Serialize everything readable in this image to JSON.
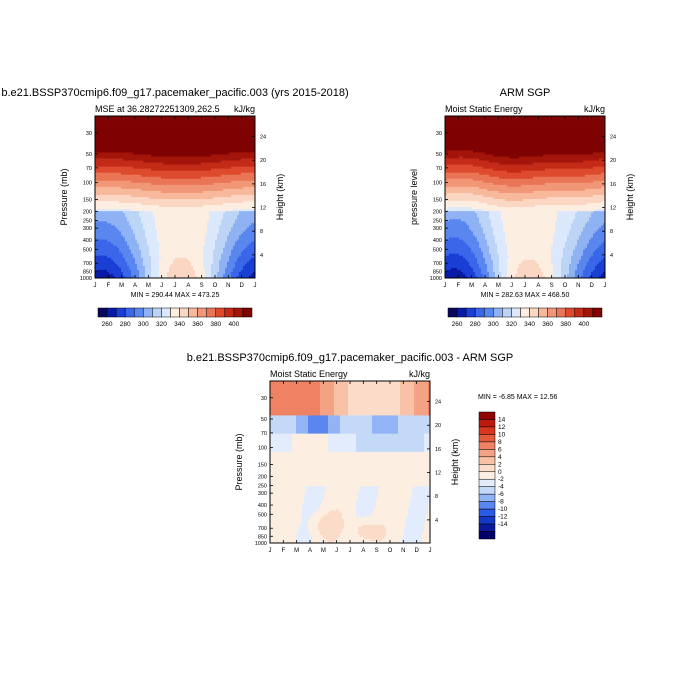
{
  "colors": {
    "abs_levels": [
      "#08085e",
      "#0a1aa8",
      "#1a3fd4",
      "#3a66ea",
      "#5a86f0",
      "#8fb2f4",
      "#bcd4f6",
      "#dce8fb",
      "#fdeee2",
      "#fbd6c2",
      "#f7b89c",
      "#f19777",
      "#ea7556",
      "#dd4a2e",
      "#c42a18",
      "#a3150a",
      "#7f0303"
    ],
    "diff_levels": [
      "#00006b",
      "#0a1a9e",
      "#1438c8",
      "#2a5ae8",
      "#5a86f0",
      "#92b4f5",
      "#c4d8f8",
      "#e2ecfc",
      "#fdeee2",
      "#fbdcc8",
      "#f8c2a6",
      "#f4a284",
      "#ef8262",
      "#e65a3c",
      "#d8361f",
      "#bb1a0d",
      "#8f0505"
    ]
  },
  "main_title": "b.e21.BSSP370cmip6.f09_g17.pacemaker_pacific.003 - ARM SGP",
  "panels": [
    {
      "title": "b.e21.BSSP370cmip6.f09_g17.pacemaker_pacific.003 (yrs 2015-2018)",
      "left_string": "MSE at 36.28272251309,262.5",
      "right_string": "kJ/kg",
      "ylabel": "Pressure (mb)",
      "right_label": "Height (km)",
      "minmax": "MIN = 290.44 MAX = 473.25"
    },
    {
      "title": "ARM SGP",
      "left_string": "Moist Static Energy",
      "right_string": "kJ/kg",
      "ylabel": "pressure level",
      "right_label": "Height (km)",
      "minmax": "MIN = 282.63 MAX = 468.50"
    },
    {
      "title": "",
      "left_string": "Moist Static Energy",
      "right_string": "kJ/kg",
      "ylabel": "Pressure (mb)",
      "right_label": "Height (km)",
      "minmax": "MIN =  -6.85 MAX =  12.56"
    }
  ],
  "chart_data": [
    {
      "type": "heatmap",
      "title": "b.e21.BSSP370cmip6.f09_g17.pacemaker_pacific.003 (yrs 2015-2018)",
      "x_ticks": [
        "J",
        "F",
        "M",
        "A",
        "M",
        "J",
        "J",
        "A",
        "S",
        "O",
        "N",
        "D",
        "J"
      ],
      "y_ticks": [
        30,
        50,
        70,
        100,
        150,
        200,
        250,
        300,
        400,
        500,
        700,
        850,
        1000
      ],
      "right_ticks": [
        24,
        20,
        16,
        12,
        8,
        4
      ],
      "ylabel": "Pressure (mb)",
      "y_scale": "log",
      "ylim": [
        1000,
        20
      ],
      "units": "kJ/kg",
      "min": 290.44,
      "max": 473.25,
      "levels": [
        260,
        270,
        280,
        290,
        300,
        310,
        320,
        330,
        340,
        350,
        360,
        370,
        380,
        390,
        400,
        410
      ],
      "colorbar_labels": [
        260,
        280,
        300,
        320,
        340,
        360,
        380,
        400
      ],
      "field": "moist static energy, month-pressure section"
    },
    {
      "type": "heatmap",
      "title": "ARM SGP",
      "x_ticks": [
        "J",
        "F",
        "M",
        "A",
        "M",
        "J",
        "J",
        "A",
        "S",
        "O",
        "N",
        "D",
        "J"
      ],
      "y_ticks": [
        30,
        50,
        70,
        100,
        150,
        200,
        250,
        300,
        400,
        500,
        700,
        850,
        1000
      ],
      "right_ticks": [
        24,
        20,
        16,
        12,
        8,
        4
      ],
      "ylabel": "pressure level",
      "y_scale": "log",
      "ylim": [
        1000,
        20
      ],
      "units": "kJ/kg",
      "min": 282.63,
      "max": 468.5,
      "levels": [
        260,
        270,
        280,
        290,
        300,
        310,
        320,
        330,
        340,
        350,
        360,
        370,
        380,
        390,
        400,
        410
      ],
      "colorbar_labels": [
        260,
        280,
        300,
        320,
        340,
        360,
        380,
        400
      ],
      "field": "moist static energy, month-pressure section"
    },
    {
      "type": "heatmap",
      "title": "b.e21.BSSP370cmip6.f09_g17.pacemaker_pacific.003 - ARM SGP",
      "x_ticks": [
        "J",
        "F",
        "M",
        "A",
        "M",
        "J",
        "J",
        "A",
        "S",
        "O",
        "N",
        "D",
        "J"
      ],
      "y_ticks": [
        30,
        50,
        70,
        100,
        150,
        200,
        250,
        300,
        400,
        500,
        700,
        850,
        1000
      ],
      "right_ticks": [
        24,
        20,
        16,
        12,
        8,
        4
      ],
      "ylabel": "Pressure (mb)",
      "y_scale": "log",
      "ylim": [
        1000,
        20
      ],
      "units": "kJ/kg",
      "min": -6.85,
      "max": 12.56,
      "levels": [
        -14,
        -12,
        -10,
        -8,
        -6,
        -4,
        -2,
        0,
        2,
        4,
        6,
        8,
        10,
        12,
        14
      ],
      "colorbar_labels": [
        14,
        12,
        10,
        8,
        6,
        4,
        2,
        0,
        -2,
        -4,
        -6,
        -8,
        -10,
        -12,
        -14
      ],
      "field": "moist static energy difference, month-pressure section"
    }
  ]
}
